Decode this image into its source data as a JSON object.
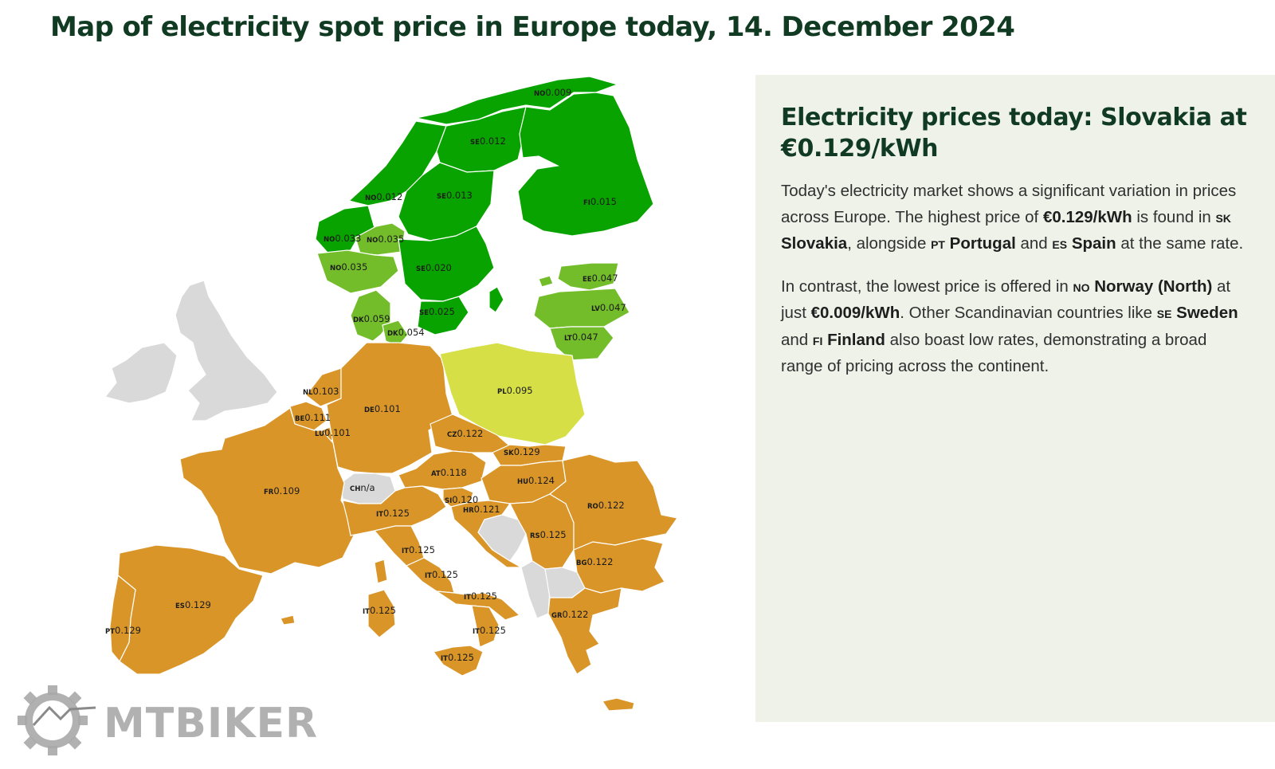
{
  "title": "Map of electricity spot price in Europe today, 14. December 2024",
  "colors": {
    "very_low": "#09a300",
    "low": "#73bd2b",
    "mid": "#d6e046",
    "high": "#d99528",
    "no_data": "#d9d9d9",
    "border": "#ffffff",
    "panel_bg": "#eef2e9",
    "title": "#103a22"
  },
  "map": {
    "labels": [
      {
        "code": "NO",
        "value": "0.009"
      },
      {
        "code": "SE",
        "value": "0.012"
      },
      {
        "code": "NO",
        "value": "0.012"
      },
      {
        "code": "SE",
        "value": "0.013"
      },
      {
        "code": "FI",
        "value": "0.015"
      },
      {
        "code": "NO",
        "value": "0.033"
      },
      {
        "code": "NO",
        "value": "0.035"
      },
      {
        "code": "NO",
        "value": "0.035"
      },
      {
        "code": "SE",
        "value": "0.020"
      },
      {
        "code": "EE",
        "value": "0.047"
      },
      {
        "code": "LV",
        "value": "0.047"
      },
      {
        "code": "DK",
        "value": "0.059"
      },
      {
        "code": "SE",
        "value": "0.025"
      },
      {
        "code": "DK",
        "value": "0.054"
      },
      {
        "code": "LT",
        "value": "0.047"
      },
      {
        "code": "NL",
        "value": "0.103"
      },
      {
        "code": "DE",
        "value": "0.101"
      },
      {
        "code": "PL",
        "value": "0.095"
      },
      {
        "code": "BE",
        "value": "0.111"
      },
      {
        "code": "LU",
        "value": "0.101"
      },
      {
        "code": "CZ",
        "value": "0.122"
      },
      {
        "code": "SK",
        "value": "0.129"
      },
      {
        "code": "AT",
        "value": "0.118"
      },
      {
        "code": "HU",
        "value": "0.124"
      },
      {
        "code": "CH",
        "value": "n/a"
      },
      {
        "code": "FR",
        "value": "0.109"
      },
      {
        "code": "SI",
        "value": "0.120"
      },
      {
        "code": "HR",
        "value": "0.121"
      },
      {
        "code": "RO",
        "value": "0.122"
      },
      {
        "code": "IT",
        "value": "0.125"
      },
      {
        "code": "RS",
        "value": "0.125"
      },
      {
        "code": "IT",
        "value": "0.125"
      },
      {
        "code": "BG",
        "value": "0.122"
      },
      {
        "code": "IT",
        "value": "0.125"
      },
      {
        "code": "IT",
        "value": "0.125"
      },
      {
        "code": "ES",
        "value": "0.129"
      },
      {
        "code": "IT",
        "value": "0.125"
      },
      {
        "code": "GR",
        "value": "0.122"
      },
      {
        "code": "PT",
        "value": "0.129"
      },
      {
        "code": "IT",
        "value": "0.125"
      },
      {
        "code": "IT",
        "value": "0.125"
      }
    ]
  },
  "panel": {
    "heading": "Electricity prices today: Slovakia at €0.129/kWh",
    "p1": {
      "t1": "Today's electricity market shows a significant variation in prices across Europe. The highest price of ",
      "price": "€0.129/kWh",
      "t2": " is found in ",
      "cc1": "SK",
      "c1": "Slovakia",
      "t3": ", alongside ",
      "cc2": "PT",
      "c2": "Portugal",
      "t4": " and ",
      "cc3": "ES",
      "c3": "Spain",
      "t5": " at the same rate."
    },
    "p2": {
      "t1": "In contrast, the lowest price is offered in ",
      "cc1": "NO",
      "c1": "Norway (North)",
      "t2": " at just ",
      "price": "€0.009/kWh",
      "t3": ". Other Scandinavian countries like ",
      "cc2": "SE",
      "c2": "Sweden",
      "t4": " and ",
      "cc3": "FI",
      "c3": "Finland",
      "t5": " also boast low rates, demonstrating a broad range of pricing across the continent."
    }
  },
  "logo": {
    "text": "MTBIKER"
  }
}
